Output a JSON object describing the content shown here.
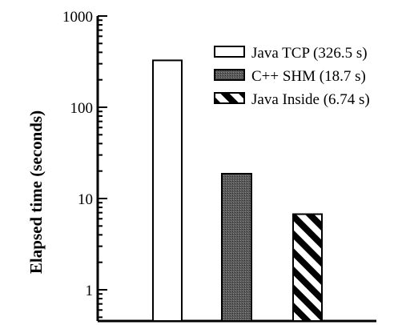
{
  "chart_data": {
    "type": "bar",
    "scale": "log",
    "ylim": [
      1,
      1000
    ],
    "ylabel": "Elapsed time (seconds)",
    "xlabel": "",
    "title": "",
    "grid": false,
    "legend_position": "top-right",
    "y_ticks": [
      {
        "value": 1,
        "label": "1"
      },
      {
        "value": 10,
        "label": "10"
      },
      {
        "value": 100,
        "label": "100"
      },
      {
        "value": 1000,
        "label": "1000"
      }
    ],
    "series": [
      {
        "legend": "Java TCP (326.5 s)",
        "value": 326.5,
        "pattern": "white"
      },
      {
        "legend": "C++ SHM (18.7 s)",
        "value": 18.7,
        "pattern": "dark-dotted"
      },
      {
        "legend": "Java Inside (6.74 s)",
        "value": 6.74,
        "pattern": "diagonal-stripes"
      }
    ]
  }
}
